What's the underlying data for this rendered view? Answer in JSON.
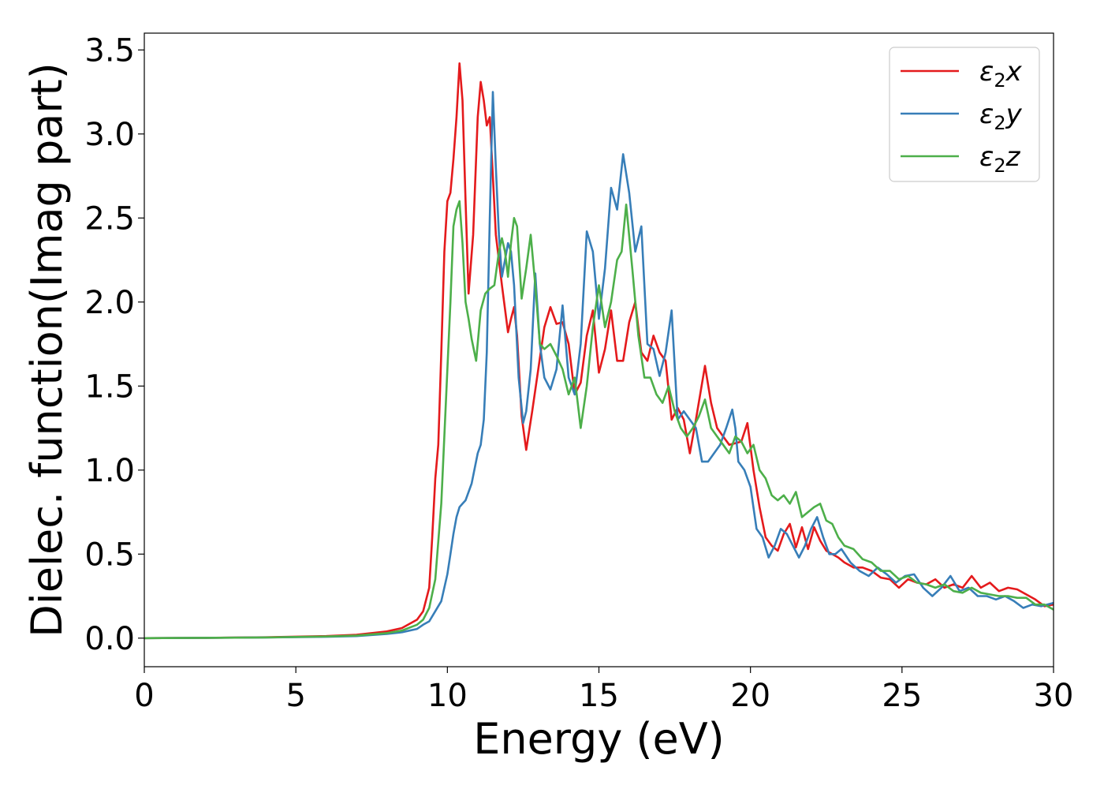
{
  "chart_data": {
    "type": "line",
    "title": "",
    "xlabel": "Energy (eV)",
    "ylabel": "Dielec. function(Imag part)",
    "xlim": [
      0,
      30
    ],
    "ylim": [
      -0.17,
      3.6
    ],
    "xticks": [
      0,
      5,
      10,
      15,
      20,
      25,
      30
    ],
    "xtick_labels": [
      "0",
      "5",
      "10",
      "15",
      "20",
      "25",
      "30"
    ],
    "yticks": [
      0,
      0.5,
      1,
      1.5,
      2,
      2.5,
      3,
      3.5
    ],
    "ytick_labels": [
      "0.0",
      "0.5",
      "1.0",
      "1.5",
      "2.0",
      "2.5",
      "3.0",
      "3.5"
    ],
    "grid": false,
    "legend_position": "top-right",
    "series": [
      {
        "name": "ε₂x",
        "legend_main": "ε",
        "legend_sub": "2",
        "legend_suffix": "x",
        "color": "#e41a1c",
        "x": [
          0,
          2,
          4,
          6,
          7,
          8,
          8.5,
          9,
          9.2,
          9.4,
          9.5,
          9.6,
          9.7,
          9.8,
          9.9,
          10.0,
          10.1,
          10.2,
          10.3,
          10.4,
          10.5,
          10.6,
          10.7,
          10.85,
          11.0,
          11.1,
          11.2,
          11.3,
          11.4,
          11.5,
          11.6,
          11.8,
          12.0,
          12.1,
          12.2,
          12.3,
          12.45,
          12.6,
          12.8,
          13.0,
          13.2,
          13.4,
          13.6,
          13.8,
          14.0,
          14.2,
          14.4,
          14.6,
          14.8,
          15.0,
          15.2,
          15.4,
          15.6,
          15.8,
          16.0,
          16.2,
          16.4,
          16.6,
          16.8,
          17.0,
          17.2,
          17.4,
          17.6,
          17.8,
          18.0,
          18.2,
          18.5,
          18.7,
          18.9,
          19.1,
          19.3,
          19.5,
          19.7,
          19.9,
          20.1,
          20.3,
          20.5,
          20.7,
          20.9,
          21.1,
          21.3,
          21.5,
          21.7,
          21.9,
          22.1,
          22.3,
          22.5,
          22.7,
          22.9,
          23.1,
          23.4,
          23.7,
          24.0,
          24.3,
          24.6,
          24.9,
          25.2,
          25.5,
          25.8,
          26.1,
          26.4,
          26.7,
          27.0,
          27.3,
          27.6,
          27.9,
          28.2,
          28.5,
          28.8,
          29.1,
          29.4,
          29.7,
          30.0
        ],
        "values": [
          0.0,
          0.002,
          0.005,
          0.012,
          0.02,
          0.04,
          0.06,
          0.11,
          0.16,
          0.3,
          0.6,
          0.95,
          1.15,
          1.7,
          2.3,
          2.6,
          2.65,
          2.85,
          3.1,
          3.42,
          3.2,
          2.6,
          2.05,
          2.4,
          3.1,
          3.31,
          3.2,
          3.05,
          3.1,
          2.75,
          2.4,
          2.1,
          1.82,
          1.9,
          1.97,
          1.8,
          1.32,
          1.12,
          1.35,
          1.6,
          1.85,
          1.97,
          1.87,
          1.88,
          1.75,
          1.45,
          1.52,
          1.8,
          1.95,
          1.58,
          1.72,
          1.95,
          1.65,
          1.65,
          1.88,
          2.0,
          1.7,
          1.65,
          1.8,
          1.7,
          1.65,
          1.3,
          1.37,
          1.3,
          1.1,
          1.3,
          1.62,
          1.4,
          1.25,
          1.2,
          1.15,
          1.16,
          1.17,
          1.28,
          1.0,
          0.78,
          0.6,
          0.55,
          0.52,
          0.62,
          0.68,
          0.54,
          0.66,
          0.53,
          0.66,
          0.58,
          0.52,
          0.5,
          0.48,
          0.45,
          0.42,
          0.42,
          0.4,
          0.36,
          0.35,
          0.3,
          0.35,
          0.33,
          0.32,
          0.35,
          0.3,
          0.32,
          0.3,
          0.37,
          0.3,
          0.33,
          0.28,
          0.3,
          0.29,
          0.26,
          0.23,
          0.19,
          0.2
        ]
      },
      {
        "name": "ε₂y",
        "legend_main": "ε",
        "legend_sub": "2",
        "legend_suffix": "y",
        "color": "#377eb8",
        "x": [
          0,
          2,
          4,
          6,
          7,
          8,
          8.5,
          9,
          9.2,
          9.4,
          9.6,
          9.8,
          10.0,
          10.1,
          10.2,
          10.3,
          10.4,
          10.5,
          10.6,
          10.8,
          11.0,
          11.1,
          11.2,
          11.3,
          11.4,
          11.5,
          11.6,
          11.7,
          11.8,
          11.9,
          12.0,
          12.1,
          12.2,
          12.35,
          12.5,
          12.6,
          12.75,
          12.9,
          13.05,
          13.2,
          13.4,
          13.6,
          13.8,
          14.0,
          14.2,
          14.4,
          14.6,
          14.8,
          15.0,
          15.2,
          15.4,
          15.6,
          15.8,
          16.0,
          16.2,
          16.4,
          16.6,
          16.8,
          17.0,
          17.2,
          17.4,
          17.6,
          17.8,
          18.0,
          18.2,
          18.4,
          18.6,
          18.8,
          19.0,
          19.2,
          19.4,
          19.5,
          19.6,
          19.8,
          20.0,
          20.2,
          20.4,
          20.6,
          20.8,
          21.0,
          21.2,
          21.4,
          21.6,
          21.8,
          22.0,
          22.2,
          22.4,
          22.6,
          22.8,
          23.0,
          23.3,
          23.6,
          23.9,
          24.2,
          24.5,
          24.8,
          25.1,
          25.4,
          25.7,
          26.0,
          26.3,
          26.6,
          26.9,
          27.2,
          27.5,
          27.8,
          28.1,
          28.4,
          28.7,
          29.0,
          29.3,
          29.6,
          30.0
        ],
        "values": [
          0.0,
          0.002,
          0.004,
          0.008,
          0.012,
          0.025,
          0.035,
          0.055,
          0.08,
          0.1,
          0.16,
          0.22,
          0.38,
          0.5,
          0.62,
          0.72,
          0.78,
          0.8,
          0.82,
          0.92,
          1.1,
          1.15,
          1.3,
          1.7,
          2.5,
          3.25,
          2.8,
          2.4,
          2.15,
          2.25,
          2.35,
          2.3,
          2.1,
          1.55,
          1.28,
          1.35,
          1.6,
          2.17,
          1.75,
          1.55,
          1.48,
          1.6,
          1.98,
          1.55,
          1.45,
          1.75,
          2.42,
          2.3,
          1.9,
          2.2,
          2.68,
          2.55,
          2.88,
          2.65,
          2.3,
          2.45,
          1.75,
          1.72,
          1.56,
          1.7,
          1.95,
          1.3,
          1.35,
          1.3,
          1.25,
          1.05,
          1.05,
          1.1,
          1.15,
          1.25,
          1.36,
          1.25,
          1.05,
          1.0,
          0.9,
          0.65,
          0.6,
          0.48,
          0.55,
          0.65,
          0.62,
          0.55,
          0.48,
          0.55,
          0.65,
          0.72,
          0.6,
          0.5,
          0.5,
          0.53,
          0.45,
          0.4,
          0.37,
          0.42,
          0.38,
          0.33,
          0.37,
          0.38,
          0.3,
          0.25,
          0.3,
          0.37,
          0.28,
          0.3,
          0.25,
          0.25,
          0.23,
          0.25,
          0.22,
          0.18,
          0.2,
          0.19,
          0.21
        ]
      },
      {
        "name": "ε₂z",
        "legend_main": "ε",
        "legend_sub": "2",
        "legend_suffix": "z",
        "color": "#4daf4a",
        "x": [
          0,
          2,
          4,
          6,
          7,
          8,
          8.5,
          9,
          9.2,
          9.4,
          9.6,
          9.8,
          9.95,
          10.1,
          10.2,
          10.3,
          10.4,
          10.5,
          10.6,
          10.7,
          10.8,
          10.95,
          11.1,
          11.25,
          11.4,
          11.55,
          11.7,
          11.8,
          11.9,
          12.0,
          12.1,
          12.2,
          12.3,
          12.45,
          12.6,
          12.75,
          12.9,
          13.05,
          13.2,
          13.4,
          13.6,
          13.8,
          14.0,
          14.2,
          14.4,
          14.6,
          14.8,
          15.0,
          15.2,
          15.4,
          15.6,
          15.75,
          15.9,
          16.1,
          16.3,
          16.5,
          16.7,
          16.9,
          17.1,
          17.3,
          17.5,
          17.7,
          17.9,
          18.1,
          18.3,
          18.5,
          18.7,
          18.9,
          19.1,
          19.3,
          19.5,
          19.7,
          19.9,
          20.1,
          20.3,
          20.5,
          20.7,
          20.9,
          21.1,
          21.3,
          21.5,
          21.7,
          21.9,
          22.1,
          22.3,
          22.5,
          22.7,
          22.9,
          23.1,
          23.4,
          23.7,
          24.0,
          24.3,
          24.6,
          24.9,
          25.2,
          25.5,
          25.8,
          26.1,
          26.4,
          26.7,
          27.0,
          27.3,
          27.6,
          27.9,
          28.2,
          28.5,
          28.8,
          29.1,
          29.4,
          29.7,
          30.0
        ],
        "values": [
          0.0,
          0.002,
          0.004,
          0.01,
          0.015,
          0.03,
          0.045,
          0.08,
          0.11,
          0.18,
          0.35,
          0.8,
          1.4,
          2.0,
          2.45,
          2.55,
          2.6,
          2.35,
          2.0,
          1.9,
          1.78,
          1.65,
          1.95,
          2.05,
          2.08,
          2.1,
          2.3,
          2.38,
          2.3,
          2.15,
          2.35,
          2.5,
          2.45,
          2.02,
          2.2,
          2.4,
          2.1,
          1.75,
          1.72,
          1.75,
          1.68,
          1.6,
          1.45,
          1.55,
          1.25,
          1.5,
          1.85,
          2.1,
          1.85,
          2.0,
          2.25,
          2.3,
          2.58,
          2.2,
          1.8,
          1.55,
          1.55,
          1.45,
          1.4,
          1.5,
          1.35,
          1.25,
          1.2,
          1.25,
          1.32,
          1.42,
          1.25,
          1.2,
          1.15,
          1.1,
          1.2,
          1.17,
          1.1,
          1.15,
          1.0,
          0.95,
          0.85,
          0.82,
          0.85,
          0.8,
          0.87,
          0.72,
          0.75,
          0.78,
          0.8,
          0.7,
          0.68,
          0.6,
          0.55,
          0.53,
          0.47,
          0.45,
          0.4,
          0.4,
          0.35,
          0.37,
          0.33,
          0.32,
          0.3,
          0.32,
          0.28,
          0.27,
          0.3,
          0.27,
          0.26,
          0.25,
          0.25,
          0.24,
          0.24,
          0.2,
          0.2,
          0.17
        ]
      }
    ]
  }
}
